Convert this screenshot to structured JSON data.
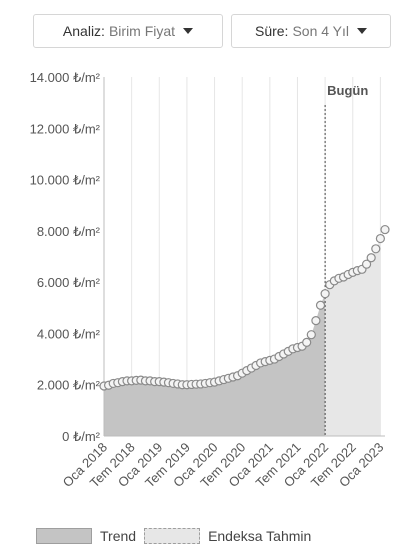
{
  "controls": {
    "analiz": {
      "label": "Analiz:",
      "value": "Birim Fiyat"
    },
    "sure": {
      "label": "Süre:",
      "value": "Son 4 Yıl"
    }
  },
  "chart_data": {
    "type": "area",
    "annotation": "Bugün",
    "y_ticks": [
      "0 ₺/m²",
      "2.000 ₺/m²",
      "4.000 ₺/m²",
      "6.000 ₺/m²",
      "8.000 ₺/m²",
      "10.000 ₺/m²",
      "12.000 ₺/m²",
      "14.000 ₺/m²"
    ],
    "y_tick_values": [
      0,
      2000,
      4000,
      6000,
      8000,
      10000,
      12000,
      14000
    ],
    "ylim": [
      0,
      14000
    ],
    "x_ticks": [
      "Oca 2018",
      "Tem 2018",
      "Oca 2019",
      "Tem 2019",
      "Oca 2020",
      "Tem 2020",
      "Oca 2021",
      "Tem 2021",
      "Oca 2022",
      "Tem 2022",
      "Oca 2023"
    ],
    "x_tick_months": [
      0,
      6,
      12,
      18,
      24,
      30,
      36,
      42,
      48,
      54,
      60
    ],
    "today_month": 48,
    "grid": "vertical",
    "legend_position": "bottom",
    "series": [
      {
        "name": "Trend",
        "x": [
          0,
          1,
          2,
          3,
          4,
          5,
          6,
          7,
          8,
          9,
          10,
          11,
          12,
          13,
          14,
          15,
          16,
          17,
          18,
          19,
          20,
          21,
          22,
          23,
          24,
          25,
          26,
          27,
          28,
          29,
          30,
          31,
          32,
          33,
          34,
          35,
          36,
          37,
          38,
          39,
          40,
          41,
          42,
          43,
          44,
          45,
          46,
          47,
          48
        ],
        "values": [
          1950,
          1980,
          2050,
          2080,
          2120,
          2150,
          2150,
          2170,
          2180,
          2150,
          2150,
          2120,
          2120,
          2100,
          2080,
          2050,
          2030,
          2000,
          2000,
          2010,
          2020,
          2030,
          2050,
          2080,
          2100,
          2150,
          2200,
          2250,
          2300,
          2350,
          2450,
          2550,
          2650,
          2750,
          2850,
          2900,
          2950,
          3000,
          3100,
          3200,
          3300,
          3400,
          3450,
          3500,
          3650,
          3950,
          4500,
          5100,
          5550
        ]
      },
      {
        "name": "Endeksa Tahmin",
        "x": [
          48,
          49,
          50,
          51,
          52,
          53,
          54,
          55,
          56,
          57,
          58,
          59,
          60
        ],
        "values": [
          5550,
          5900,
          6050,
          6150,
          6200,
          6300,
          6380,
          6450,
          6500,
          6700,
          6950,
          7300,
          7700
        ]
      }
    ],
    "marker_x": [
      0,
      1,
      2,
      3,
      4,
      5,
      6,
      7,
      8,
      9,
      10,
      11,
      12,
      13,
      14,
      15,
      16,
      17,
      18,
      19,
      20,
      21,
      22,
      23,
      24,
      25,
      26,
      27,
      28,
      29,
      30,
      31,
      32,
      33,
      34,
      35,
      36,
      37,
      38,
      39,
      40,
      41,
      42,
      43,
      44,
      45,
      46,
      47,
      48,
      49,
      50,
      51,
      52,
      53,
      54,
      55,
      56,
      57,
      58,
      59,
      60,
      61
    ],
    "marker_values": [
      1950,
      1980,
      2050,
      2080,
      2120,
      2150,
      2150,
      2170,
      2180,
      2150,
      2150,
      2120,
      2120,
      2100,
      2080,
      2050,
      2030,
      2000,
      2000,
      2010,
      2020,
      2030,
      2050,
      2080,
      2100,
      2150,
      2200,
      2250,
      2300,
      2350,
      2450,
      2550,
      2650,
      2750,
      2850,
      2900,
      2950,
      3000,
      3100,
      3200,
      3300,
      3400,
      3450,
      3500,
      3650,
      3950,
      4500,
      5100,
      5550,
      5900,
      6050,
      6150,
      6200,
      6300,
      6380,
      6450,
      6500,
      6700,
      6950,
      7300,
      7700,
      8050
    ]
  },
  "legend": {
    "trend": "Trend",
    "forecast": "Endeksa Tahmin"
  },
  "colors": {
    "trend_fill": "#c4c4c4",
    "forecast_fill": "#e7e7e7",
    "marker": "#8a8a8a",
    "grid": "#e6e6e6"
  }
}
